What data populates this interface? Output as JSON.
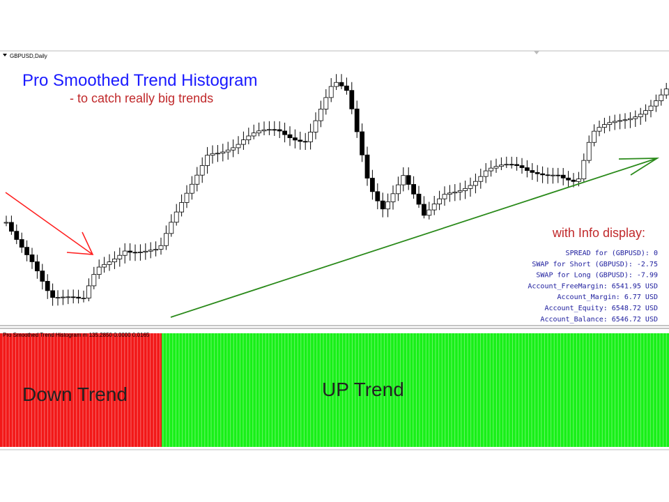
{
  "window": {
    "symbol": "GBPUSD,Daily"
  },
  "header": {
    "title": "Pro Smoothed Trend Histogram",
    "subtitle": "- to catch really big trends"
  },
  "info": {
    "title": "with Info display:",
    "lines": [
      "SPREAD for (GBPUSD): 0",
      "SWAP for Short (GBPUSD): -2.75",
      "SWAP for Long (GBPUSD): -7.99",
      "Account_FreeMargin: 6541.95 USD",
      "Account_Margin: 6.77 USD",
      "Account_Equity: 6548.72 USD",
      "Account_Balance: 6546.72 USD"
    ]
  },
  "indicator": {
    "label": "Pro Smoothed Trend Histogram m 135.2850 0.0000 0.0165",
    "down_label": "Down Trend",
    "up_label": "UP Trend"
  }
}
